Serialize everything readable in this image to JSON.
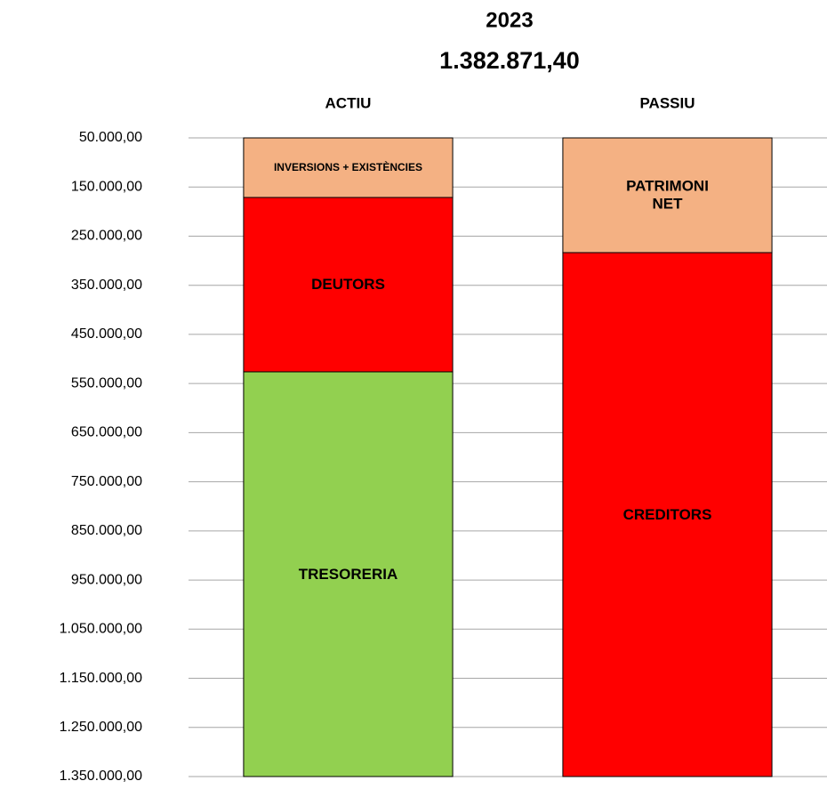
{
  "chart_data": {
    "type": "stacked_bar",
    "title": "2023",
    "subtitle": "1.382.871,40",
    "categories": [
      "ACTIU",
      "PASSIU"
    ],
    "series": [
      {
        "name": "INVERSIONS + EXISTÈNCIES",
        "color": "#f4b183",
        "values": [
          171300,
          null
        ]
      },
      {
        "name": "DEUTORS",
        "color": "#ff0000",
        "values": [
          354900,
          null
        ]
      },
      {
        "name": "TRESORERIA",
        "color": "#92d050",
        "values": [
          856700,
          null
        ]
      },
      {
        "name": "PATRIMONI NET",
        "color": "#f4b183",
        "values": [
          null,
          283600
        ]
      },
      {
        "name": "CREDITORS",
        "color": "#ff0000",
        "values": [
          null,
          1099300
        ]
      }
    ],
    "ylim": [
      50000,
      1350000
    ],
    "y_reversed": true,
    "yticks": [
      {
        "value": 50000,
        "label": "50.000,00"
      },
      {
        "value": 150000,
        "label": "150.000,00"
      },
      {
        "value": 250000,
        "label": "250.000,00"
      },
      {
        "value": 350000,
        "label": "350.000,00"
      },
      {
        "value": 450000,
        "label": "450.000,00"
      },
      {
        "value": 550000,
        "label": "550.000,00"
      },
      {
        "value": 650000,
        "label": "650.000,00"
      },
      {
        "value": 750000,
        "label": "750.000,00"
      },
      {
        "value": 850000,
        "label": "850.000,00"
      },
      {
        "value": 950000,
        "label": "950.000,00"
      },
      {
        "value": 1050000,
        "label": "1.050.000,00"
      },
      {
        "value": 1150000,
        "label": "1.150.000,00"
      },
      {
        "value": 1250000,
        "label": "1.250.000,00"
      },
      {
        "value": 1350000,
        "label": "1.350.000,00"
      }
    ],
    "grid": true
  }
}
